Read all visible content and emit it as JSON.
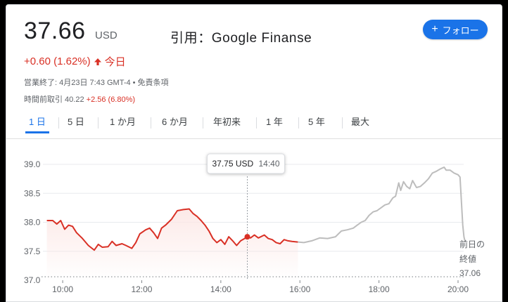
{
  "header": {
    "price": "37.66",
    "currency": "USD",
    "watermark": "引用：Google Finanse",
    "follow_label": "フォロー",
    "follow_icon": "plus-icon",
    "change_text": "+0.60 (1.62%)",
    "change_period": "今日",
    "change_color": "#d93025",
    "market_status": "営業終了: 4月23日 7:43 GMT-4 • 免責条項",
    "premarket_label": "時間前取引 40.22 ",
    "premarket_change": "+2.56 (6.80%)"
  },
  "tabs": [
    {
      "label": "1 日",
      "active": true
    },
    {
      "label": "5 日",
      "active": false
    },
    {
      "label": "1 か月",
      "active": false
    },
    {
      "label": "6 か月",
      "active": false
    },
    {
      "label": "年初来",
      "active": false
    },
    {
      "label": "1 年",
      "active": false
    },
    {
      "label": "5 年",
      "active": false
    },
    {
      "label": "最大",
      "active": false
    }
  ],
  "tooltip": {
    "price": "37.75 USD",
    "time": "14:40"
  },
  "prev_close": {
    "line1": "前日の",
    "line2": "終値",
    "value": "37.06"
  },
  "chart_data": {
    "type": "line",
    "x_unit": "hours",
    "xlim": [
      9.5,
      20.0
    ],
    "ylim": [
      37.0,
      39.0
    ],
    "y_ticks": [
      "39.0",
      "38.5",
      "38.0",
      "37.5",
      "37.0"
    ],
    "y_tick_values": [
      39.0,
      38.5,
      38.0,
      37.5,
      37.0
    ],
    "x_ticks": [
      "10:00",
      "12:00",
      "14:00",
      "16:00",
      "18:00",
      "20:00"
    ],
    "x_tick_values": [
      10,
      12,
      14,
      16,
      18,
      20
    ],
    "previous_close": 37.06,
    "highlight_point": {
      "x": 14.67,
      "y": 37.75
    },
    "series": [
      {
        "segment": "regular",
        "color": "#d93025",
        "points": [
          [
            9.6,
            38.03
          ],
          [
            9.75,
            38.03
          ],
          [
            9.85,
            37.97
          ],
          [
            9.95,
            38.03
          ],
          [
            10.05,
            37.88
          ],
          [
            10.15,
            37.95
          ],
          [
            10.25,
            37.93
          ],
          [
            10.35,
            37.82
          ],
          [
            10.5,
            37.72
          ],
          [
            10.65,
            37.6
          ],
          [
            10.8,
            37.52
          ],
          [
            10.9,
            37.62
          ],
          [
            11.0,
            37.57
          ],
          [
            11.15,
            37.58
          ],
          [
            11.25,
            37.67
          ],
          [
            11.35,
            37.6
          ],
          [
            11.5,
            37.63
          ],
          [
            11.6,
            37.6
          ],
          [
            11.75,
            37.55
          ],
          [
            11.85,
            37.65
          ],
          [
            11.95,
            37.8
          ],
          [
            12.1,
            37.87
          ],
          [
            12.2,
            37.9
          ],
          [
            12.3,
            37.82
          ],
          [
            12.4,
            37.72
          ],
          [
            12.5,
            37.9
          ],
          [
            12.6,
            37.95
          ],
          [
            12.75,
            38.05
          ],
          [
            12.9,
            38.2
          ],
          [
            13.05,
            38.22
          ],
          [
            13.2,
            38.23
          ],
          [
            13.3,
            38.15
          ],
          [
            13.4,
            38.1
          ],
          [
            13.5,
            38.03
          ],
          [
            13.6,
            37.95
          ],
          [
            13.7,
            37.85
          ],
          [
            13.8,
            37.72
          ],
          [
            13.9,
            37.65
          ],
          [
            14.0,
            37.7
          ],
          [
            14.1,
            37.62
          ],
          [
            14.2,
            37.75
          ],
          [
            14.3,
            37.68
          ],
          [
            14.4,
            37.6
          ],
          [
            14.5,
            37.68
          ],
          [
            14.6,
            37.72
          ],
          [
            14.67,
            37.75
          ],
          [
            14.75,
            37.73
          ],
          [
            14.85,
            37.78
          ],
          [
            14.95,
            37.73
          ],
          [
            15.1,
            37.78
          ],
          [
            15.2,
            37.72
          ],
          [
            15.3,
            37.7
          ],
          [
            15.4,
            37.65
          ],
          [
            15.5,
            37.63
          ],
          [
            15.6,
            37.7
          ],
          [
            15.7,
            37.68
          ],
          [
            15.8,
            37.67
          ],
          [
            15.95,
            37.66
          ]
        ]
      },
      {
        "segment": "after_hours",
        "color": "#bdbdbd",
        "points": [
          [
            15.95,
            37.66
          ],
          [
            16.1,
            37.65
          ],
          [
            16.3,
            37.68
          ],
          [
            16.5,
            37.73
          ],
          [
            16.7,
            37.72
          ],
          [
            16.9,
            37.75
          ],
          [
            17.05,
            37.85
          ],
          [
            17.2,
            37.87
          ],
          [
            17.35,
            37.9
          ],
          [
            17.45,
            37.95
          ],
          [
            17.55,
            38.0
          ],
          [
            17.65,
            38.03
          ],
          [
            17.75,
            38.12
          ],
          [
            17.85,
            38.18
          ],
          [
            17.95,
            38.2
          ],
          [
            18.05,
            38.25
          ],
          [
            18.15,
            38.3
          ],
          [
            18.25,
            38.32
          ],
          [
            18.35,
            38.42
          ],
          [
            18.42,
            38.45
          ],
          [
            18.5,
            38.68
          ],
          [
            18.55,
            38.55
          ],
          [
            18.62,
            38.7
          ],
          [
            18.7,
            38.62
          ],
          [
            18.78,
            38.58
          ],
          [
            18.85,
            38.72
          ],
          [
            18.95,
            38.6
          ],
          [
            19.05,
            38.62
          ],
          [
            19.15,
            38.68
          ],
          [
            19.25,
            38.75
          ],
          [
            19.35,
            38.85
          ],
          [
            19.45,
            38.88
          ],
          [
            19.55,
            38.92
          ],
          [
            19.65,
            38.95
          ],
          [
            19.7,
            38.9
          ],
          [
            19.8,
            38.9
          ],
          [
            19.9,
            38.85
          ],
          [
            20.0,
            38.82
          ],
          [
            20.05,
            38.78
          ],
          [
            20.12,
            37.95
          ],
          [
            20.15,
            37.75
          ],
          [
            20.18,
            37.66
          ]
        ]
      }
    ]
  }
}
